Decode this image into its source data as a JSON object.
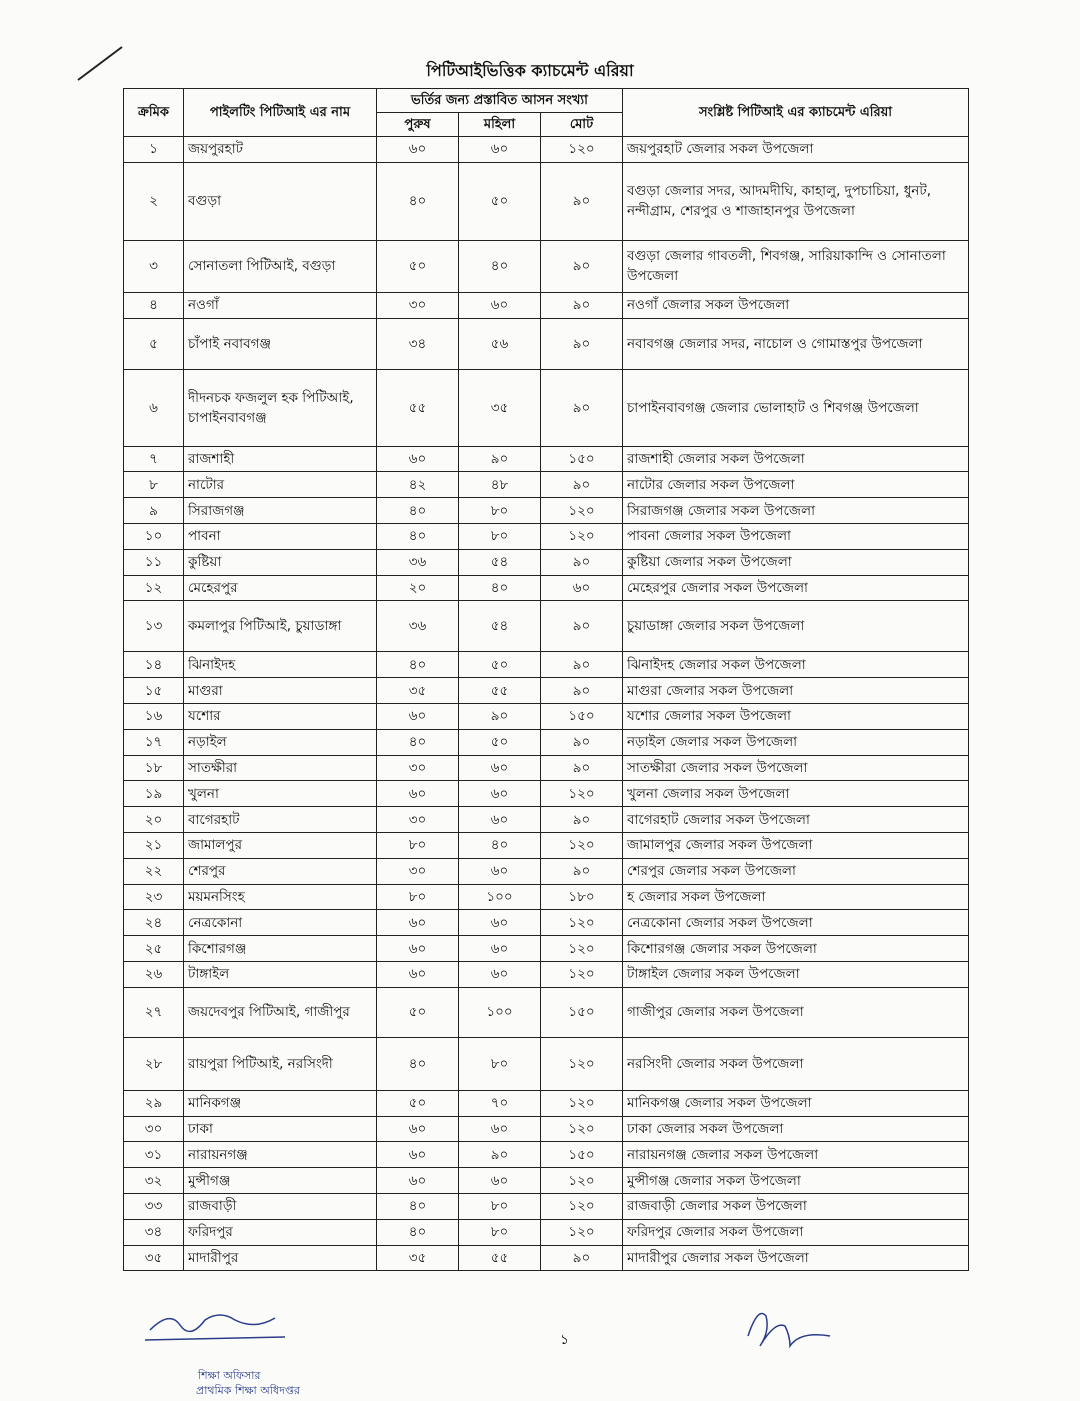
{
  "title": "পিটিআইভিত্তিক ক্যাচমেন্ট এরিয়া",
  "table": {
    "header": {
      "serial": "ক্রমিক",
      "name": "পাইলটিং পিটিআই এর নাম",
      "seats": "ভর্তির জন্য প্রস্তাবিত আসন সংখ্যা",
      "male": "পুরুষ",
      "female": "মহিলা",
      "total": "মোট",
      "area": "সংশ্লিষ্ট পিটিআই এর ক্যাচমেন্ট এরিয়া"
    },
    "rows": [
      [
        "১",
        "জয়পুরহাট",
        "৬০",
        "৬০",
        "১২০",
        "জয়পুরহাট জেলার সকল উপজেলা"
      ],
      [
        "২",
        "বগুড়া",
        "৪০",
        "৫০",
        "৯০",
        "বগুড়া জেলার সদর, আদমদীঘি, কাহালু, দুপচাচিয়া, ধুনট, নন্দীগ্রাম, শেরপুর ও শাজাহানপুর উপজেলা"
      ],
      [
        "৩",
        "সোনাতলা পিটিআই, বগুড়া",
        "৫০",
        "৪০",
        "৯০",
        "বগুড়া জেলার গাবতলী, শিবগঞ্জ, সারিয়াকান্দি ও সোনাতলা উপজেলা"
      ],
      [
        "৪",
        "নওগাঁ",
        "৩০",
        "৬০",
        "৯০",
        "নওগাঁ জেলার সকল উপজেলা"
      ],
      [
        "৫",
        "চাঁপাই নবাবগঞ্জ",
        "৩৪",
        "৫৬",
        "৯০",
        "নবাবগঞ্জ জেলার সদর, নাচোল ও গোমাস্তপুর উপজেলা"
      ],
      [
        "৬",
        "দীদনচক ফজলুল হক পিটিআই, চাপাইনবাবগঞ্জ",
        "৫৫",
        "৩৫",
        "৯০",
        "চাপাইনবাবগঞ্জ জেলার ভোলাহাট ও শিবগঞ্জ উপজেলা"
      ],
      [
        "৭",
        "রাজশাহী",
        "৬০",
        "৯০",
        "১৫০",
        "রাজশাহী জেলার সকল উপজেলা"
      ],
      [
        "৮",
        "নাটোর",
        "৪২",
        "৪৮",
        "৯০",
        "নাটোর জেলার সকল উপজেলা"
      ],
      [
        "৯",
        "সিরাজগঞ্জ",
        "৪০",
        "৮০",
        "১২০",
        "সিরাজগঞ্জ জেলার সকল উপজেলা"
      ],
      [
        "১০",
        "পাবনা",
        "৪০",
        "৮০",
        "১২০",
        "পাবনা জেলার সকল উপজেলা"
      ],
      [
        "১১",
        "কুষ্টিয়া",
        "৩৬",
        "৫৪",
        "৯০",
        "কুষ্টিয়া জেলার সকল উপজেলা"
      ],
      [
        "১২",
        "মেহেরপুর",
        "২০",
        "৪০",
        "৬০",
        "মেহেরপুর জেলার সকল উপজেলা"
      ],
      [
        "১৩",
        "কমলাপুর পিটিআই, চুয়াডাঙ্গা",
        "৩৬",
        "৫৪",
        "৯০",
        "চুয়াডাঙ্গা জেলার সকল উপজেলা"
      ],
      [
        "১৪",
        "ঝিনাইদহ",
        "৪০",
        "৫০",
        "৯০",
        "ঝিনাইদহ জেলার সকল উপজেলা"
      ],
      [
        "১৫",
        "মাগুরা",
        "৩৫",
        "৫৫",
        "৯০",
        "মাগুরা জেলার সকল উপজেলা"
      ],
      [
        "১৬",
        "যশোর",
        "৬০",
        "৯০",
        "১৫০",
        "যশোর জেলার সকল উপজেলা"
      ],
      [
        "১৭",
        "নড়াইল",
        "৪০",
        "৫০",
        "৯০",
        "নড়াইল জেলার সকল উপজেলা"
      ],
      [
        "১৮",
        "সাতক্ষীরা",
        "৩০",
        "৬০",
        "৯০",
        "সাতক্ষীরা জেলার সকল উপজেলা"
      ],
      [
        "১৯",
        "খুলনা",
        "৬০",
        "৬০",
        "১২০",
        "খুলনা জেলার সকল উপজেলা"
      ],
      [
        "২০",
        "বাগেরহাট",
        "৩০",
        "৬০",
        "৯০",
        "বাগেরহাট জেলার সকল উপজেলা"
      ],
      [
        "২১",
        "জামালপুর",
        "৮০",
        "৪০",
        "১২০",
        "জামালপুর জেলার সকল উপজেলা"
      ],
      [
        "২২",
        "শেরপুর",
        "৩০",
        "৬০",
        "৯০",
        "শেরপুর জেলার সকল উপজেলা"
      ],
      [
        "২৩",
        "ময়মনসিংহ",
        "৮০",
        "১০০",
        "১৮০",
        "হ জেলার সকল উপজেলা"
      ],
      [
        "২৪",
        "নেত্রকোনা",
        "৬০",
        "৬০",
        "১২০",
        "নেত্রকোনা জেলার সকল উপজেলা"
      ],
      [
        "২৫",
        "কিশোরগঞ্জ",
        "৬০",
        "৬০",
        "১২০",
        "কিশোরগঞ্জ জেলার সকল উপজেলা"
      ],
      [
        "২৬",
        "টাঙ্গাইল",
        "৬০",
        "৬০",
        "১২০",
        "টাঙ্গাইল জেলার সকল উপজেলা"
      ],
      [
        "২৭",
        "জয়দেবপুর পিটিআই, গাজীপুর",
        "৫০",
        "১০০",
        "১৫০",
        "গাজীপুর জেলার সকল উপজেলা"
      ],
      [
        "২৮",
        "রায়পুরা পিটিআই, নরসিংদী",
        "৪০",
        "৮০",
        "১২০",
        "নরসিংদী জেলার সকল উপজেলা"
      ],
      [
        "২৯",
        "মানিকগঞ্জ",
        "৫০",
        "৭০",
        "১২০",
        "মানিকগঞ্জ জেলার সকল উপজেলা"
      ],
      [
        "৩০",
        "ঢাকা",
        "৬০",
        "৬০",
        "১২০",
        "ঢাকা জেলার সকল উপজেলা"
      ],
      [
        "৩১",
        "নারায়নগঞ্জ",
        "৬০",
        "৯০",
        "১৫০",
        "নারায়নগঞ্জ জেলার সকল উপজেলা"
      ],
      [
        "৩২",
        "মুন্সীগঞ্জ",
        "৬০",
        "৬০",
        "১২০",
        "মুন্সীগঞ্জ জেলার সকল উপজেলা"
      ],
      [
        "৩৩",
        "রাজবাড়ী",
        "৪০",
        "৮০",
        "১২০",
        "রাজবাড়ী জেলার সকল উপজেলা"
      ],
      [
        "৩৪",
        "ফরিদপুর",
        "৪০",
        "৮০",
        "১২০",
        "ফরিদপুর জেলার সকল উপজেলা"
      ],
      [
        "৩৫",
        "মাদারীপুর",
        "৩৫",
        "৫৫",
        "৯০",
        "মাদারীপুর জেলার সকল উপজেলা"
      ]
    ]
  },
  "footer": {
    "page": "১",
    "signature": [
      "শিক্ষা অফিসার",
      "প্রাথমিক শিক্ষা অধিদপ্তর"
    ]
  }
}
